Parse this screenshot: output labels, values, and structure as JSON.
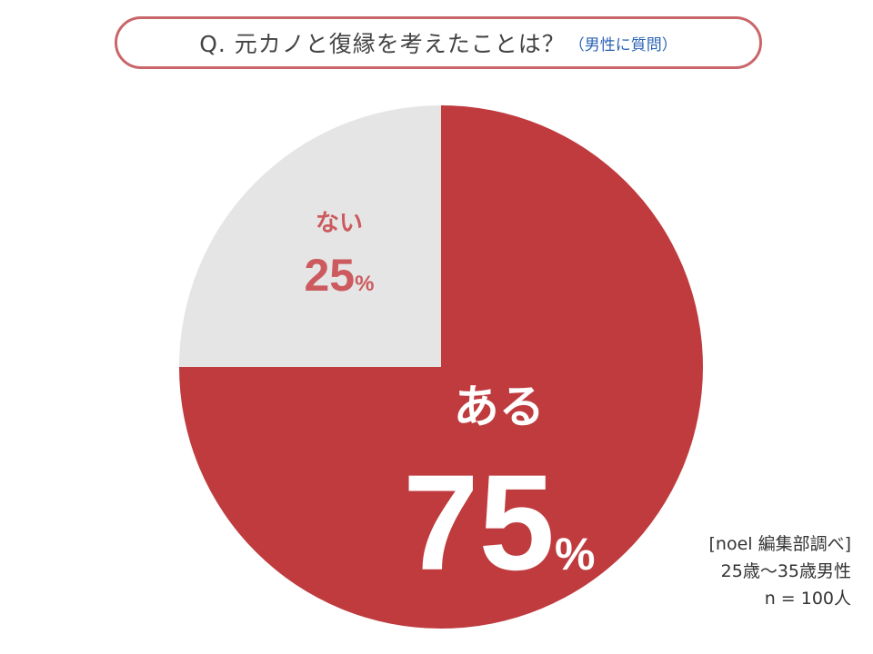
{
  "header": {
    "title": "Q. 元カノと復縁を考えたことは？",
    "subtitle": "（男性に質問）"
  },
  "chart_data": {
    "type": "pie",
    "categories": [
      "ある",
      "ない"
    ],
    "values": [
      75,
      25
    ],
    "value_labels": [
      "75",
      "25"
    ],
    "unit": "%",
    "start": "12 o'clock, clockwise",
    "colors": [
      "#bf3b3e",
      "#e5e5e5"
    ],
    "label_colors": [
      "#ffffff",
      "#cc5a5e"
    ]
  },
  "source": {
    "line1": "[noel 編集部調べ]",
    "line2": "25歳〜35歳男性",
    "line3": "n = 100人"
  }
}
